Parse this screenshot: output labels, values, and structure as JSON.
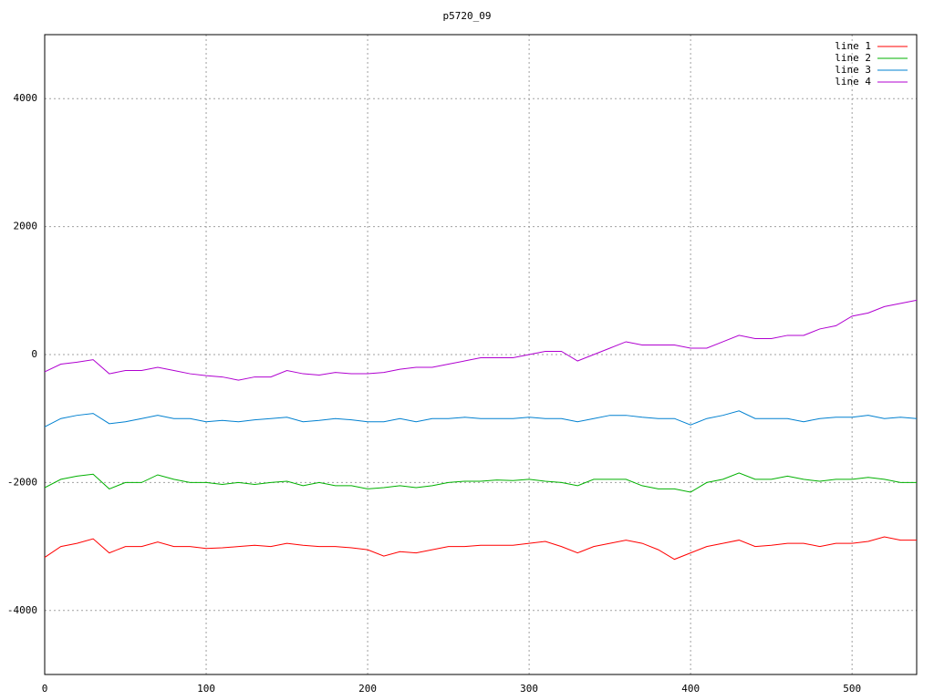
{
  "chart_data": {
    "type": "line",
    "title": "p5720_09",
    "x": [
      0,
      10,
      20,
      30,
      40,
      50,
      60,
      70,
      80,
      90,
      100,
      110,
      120,
      130,
      140,
      150,
      160,
      170,
      180,
      190,
      200,
      210,
      220,
      230,
      240,
      250,
      260,
      270,
      280,
      290,
      300,
      310,
      320,
      330,
      340,
      350,
      360,
      370,
      380,
      390,
      400,
      410,
      420,
      430,
      440,
      450,
      460,
      470,
      480,
      490,
      500,
      510,
      520,
      530,
      540
    ],
    "series": [
      {
        "name": "line 1",
        "color": "#ff0000",
        "values": [
          -3170,
          -3000,
          -2950,
          -2880,
          -3100,
          -3000,
          -3000,
          -2930,
          -3000,
          -3000,
          -3030,
          -3020,
          -3000,
          -2980,
          -3000,
          -2950,
          -2980,
          -3000,
          -3000,
          -3020,
          -3050,
          -3150,
          -3080,
          -3100,
          -3050,
          -3000,
          -3000,
          -2980,
          -2980,
          -2980,
          -2950,
          -2920,
          -3000,
          -3100,
          -3000,
          -2950,
          -2900,
          -2950,
          -3050,
          -3200,
          -3100,
          -3000,
          -2950,
          -2900,
          -3000,
          -2980,
          -2950,
          -2950,
          -3000,
          -2950,
          -2950,
          -2920,
          -2850,
          -2900,
          -2900
        ]
      },
      {
        "name": "line 2",
        "color": "#00b000",
        "values": [
          -2080,
          -1950,
          -1900,
          -1870,
          -2100,
          -2000,
          -2000,
          -1880,
          -1950,
          -2000,
          -2000,
          -2030,
          -2000,
          -2030,
          -2000,
          -1980,
          -2050,
          -2000,
          -2050,
          -2050,
          -2100,
          -2080,
          -2050,
          -2080,
          -2050,
          -2000,
          -1980,
          -1980,
          -1960,
          -1970,
          -1950,
          -1980,
          -2000,
          -2050,
          -1950,
          -1950,
          -1950,
          -2050,
          -2100,
          -2100,
          -2150,
          -2000,
          -1950,
          -1850,
          -1950,
          -1950,
          -1900,
          -1950,
          -1980,
          -1950,
          -1950,
          -1920,
          -1950,
          -2000,
          -2000
        ]
      },
      {
        "name": "line 3",
        "color": "#0080d0",
        "values": [
          -1130,
          -1000,
          -950,
          -920,
          -1080,
          -1050,
          -1000,
          -950,
          -1000,
          -1000,
          -1050,
          -1030,
          -1050,
          -1020,
          -1000,
          -980,
          -1050,
          -1030,
          -1000,
          -1020,
          -1050,
          -1050,
          -1000,
          -1050,
          -1000,
          -1000,
          -980,
          -1000,
          -1000,
          -1000,
          -980,
          -1000,
          -1000,
          -1050,
          -1000,
          -950,
          -950,
          -980,
          -1000,
          -1000,
          -1100,
          -1000,
          -950,
          -880,
          -1000,
          -1000,
          -1000,
          -1050,
          -1000,
          -980,
          -980,
          -950,
          -1000,
          -980,
          -1000
        ]
      },
      {
        "name": "line 4",
        "color": "#b000d0",
        "values": [
          -270,
          -150,
          -120,
          -80,
          -300,
          -250,
          -250,
          -200,
          -250,
          -300,
          -330,
          -350,
          -400,
          -350,
          -350,
          -250,
          -300,
          -320,
          -280,
          -300,
          -300,
          -280,
          -230,
          -200,
          -200,
          -150,
          -100,
          -50,
          -50,
          -50,
          0,
          50,
          50,
          -100,
          0,
          100,
          200,
          150,
          150,
          150,
          100,
          100,
          200,
          300,
          250,
          250,
          300,
          300,
          400,
          450,
          600,
          650,
          750,
          800,
          850
        ]
      }
    ],
    "xlim": [
      0,
      540
    ],
    "xticks": [
      0,
      100,
      200,
      300,
      400,
      500
    ],
    "ylim": [
      -5000,
      5000
    ],
    "yticks": [
      -4000,
      -2000,
      0,
      2000,
      4000
    ],
    "grid": true,
    "legend": "top-right"
  }
}
